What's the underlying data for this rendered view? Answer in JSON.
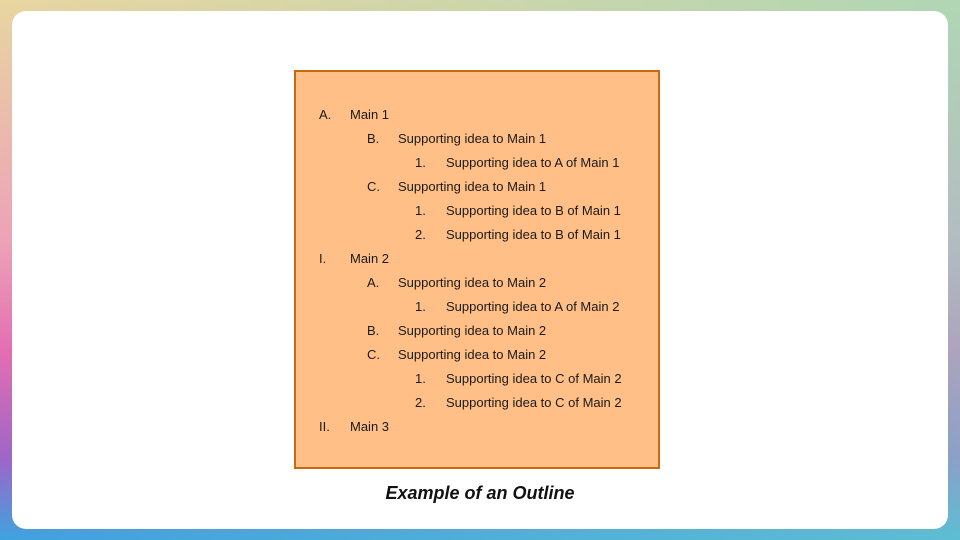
{
  "outline": {
    "items": [
      {
        "marker": "A.",
        "text": "Main 1",
        "level": 0
      },
      {
        "marker": "B.",
        "text": "Supporting idea to Main 1",
        "level": 1
      },
      {
        "marker": "1.",
        "text": "Supporting idea to A of Main 1",
        "level": 2
      },
      {
        "marker": "C.",
        "text": "Supporting idea to Main 1",
        "level": 1
      },
      {
        "marker": "1.",
        "text": "Supporting idea to B of Main 1",
        "level": 2
      },
      {
        "marker": "2.",
        "text": "Supporting idea to B of Main 1",
        "level": 2
      },
      {
        "marker": "I.",
        "text": "Main 2",
        "level": 0
      },
      {
        "marker": "A.",
        "text": "Supporting idea to Main 2",
        "level": 1
      },
      {
        "marker": "1.",
        "text": "Supporting idea to A of Main 2",
        "level": 2
      },
      {
        "marker": "B.",
        "text": "Supporting idea to Main 2",
        "level": 1
      },
      {
        "marker": "C.",
        "text": "Supporting idea to Main 2",
        "level": 1
      },
      {
        "marker": "1.",
        "text": "Supporting idea to C of Main 2",
        "level": 2
      },
      {
        "marker": "2.",
        "text": "Supporting idea to C of Main 2",
        "level": 2
      },
      {
        "marker": "II.",
        "text": "Main 3",
        "level": 0
      }
    ]
  },
  "caption": "Example of an Outline",
  "colors": {
    "box_fill": "#ffbf86",
    "box_border": "#c76a12"
  }
}
